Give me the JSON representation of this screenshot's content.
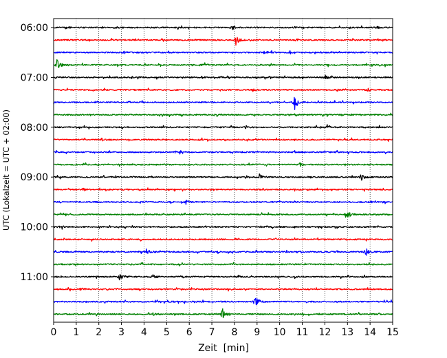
{
  "chart_data": {
    "type": "line",
    "title": "",
    "xlabel": "Zeit  [min]",
    "ylabel": "UTC (Lokalzeit = UTC + 02:00)",
    "xlim": [
      0,
      15
    ],
    "x_ticks": [
      "0",
      "1",
      "2",
      "3",
      "4",
      "5",
      "6",
      "7",
      "8",
      "9",
      "10",
      "11",
      "12",
      "13",
      "14",
      "15"
    ],
    "grid": "vertical dotted",
    "start_time": "06:00",
    "row_interval_minutes": 15,
    "rows": 24,
    "y_tick_labels": [
      "06:00",
      "07:00",
      "08:00",
      "09:00",
      "10:00",
      "11:00"
    ],
    "color_cycle": [
      "#000000",
      "#ff0000",
      "#0000ff",
      "#008000"
    ],
    "events": [
      {
        "row": 0,
        "x": 0.5,
        "amp": 1.0
      },
      {
        "row": 0,
        "x": 2.7,
        "amp": 0.8
      },
      {
        "row": 0,
        "x": 7.9,
        "amp": 1.5
      },
      {
        "row": 0,
        "x": 14.3,
        "amp": 1.0
      },
      {
        "row": 1,
        "x": 8.05,
        "amp": 6.0
      },
      {
        "row": 1,
        "x": 10.7,
        "amp": 1.2
      },
      {
        "row": 1,
        "x": 13.2,
        "amp": 0.8
      },
      {
        "row": 2,
        "x": 3.1,
        "amp": 1.0
      },
      {
        "row": 2,
        "x": 9.3,
        "amp": 0.8
      },
      {
        "row": 3,
        "x": 0.15,
        "amp": 5.0
      },
      {
        "row": 3,
        "x": 6.6,
        "amp": 1.0
      },
      {
        "row": 4,
        "x": 6.5,
        "amp": 1.0
      },
      {
        "row": 4,
        "x": 12.0,
        "amp": 2.5
      },
      {
        "row": 5,
        "x": 8.8,
        "amp": 1.0
      },
      {
        "row": 5,
        "x": 13.9,
        "amp": 1.3
      },
      {
        "row": 6,
        "x": 3.3,
        "amp": 1.0
      },
      {
        "row": 6,
        "x": 10.65,
        "amp": 7.0
      },
      {
        "row": 7,
        "x": 7.2,
        "amp": 0.7
      },
      {
        "row": 8,
        "x": 8.5,
        "amp": 1.2
      },
      {
        "row": 8,
        "x": 12.1,
        "amp": 0.8
      },
      {
        "row": 9,
        "x": 2.1,
        "amp": 1.2
      },
      {
        "row": 10,
        "x": 5.4,
        "amp": 0.6
      },
      {
        "row": 11,
        "x": 10.9,
        "amp": 1.5
      },
      {
        "row": 12,
        "x": 9.1,
        "amp": 2.5
      },
      {
        "row": 12,
        "x": 13.6,
        "amp": 3.0
      },
      {
        "row": 13,
        "x": 1.3,
        "amp": 1.0
      },
      {
        "row": 14,
        "x": 5.85,
        "amp": 1.8
      },
      {
        "row": 15,
        "x": 12.95,
        "amp": 4.5
      },
      {
        "row": 16,
        "x": 0.3,
        "amp": 1.5
      },
      {
        "row": 16,
        "x": 9.2,
        "amp": 1.0
      },
      {
        "row": 18,
        "x": 4.1,
        "amp": 2.5
      },
      {
        "row": 18,
        "x": 13.8,
        "amp": 3.5
      },
      {
        "row": 19,
        "x": 9.7,
        "amp": 0.8
      },
      {
        "row": 20,
        "x": 2.9,
        "amp": 4.0
      },
      {
        "row": 20,
        "x": 4.4,
        "amp": 2.0
      },
      {
        "row": 20,
        "x": 8.1,
        "amp": 1.5
      },
      {
        "row": 21,
        "x": 1.2,
        "amp": 1.0
      },
      {
        "row": 22,
        "x": 8.9,
        "amp": 6.0
      },
      {
        "row": 23,
        "x": 7.45,
        "amp": 6.0
      },
      {
        "row": 23,
        "x": 4.4,
        "amp": 1.2
      }
    ]
  }
}
